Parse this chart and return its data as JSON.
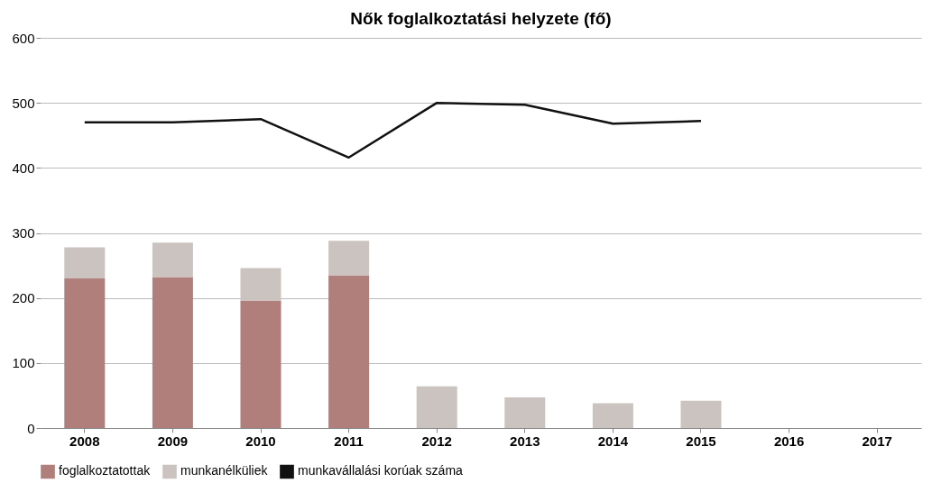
{
  "chart_data": {
    "type": "bar",
    "title": "Nők foglalkoztatási helyzete (fő)",
    "categories": [
      "2008",
      "2009",
      "2010",
      "2011",
      "2012",
      "2013",
      "2014",
      "2015",
      "2016",
      "2017"
    ],
    "stacked": true,
    "series": [
      {
        "name": "foglalkoztatottak",
        "color": "#b07f7b",
        "values": [
          230,
          232,
          196,
          235,
          null,
          null,
          null,
          null,
          null,
          null
        ]
      },
      {
        "name": "munkanélküliek",
        "color": "#cbc3bf",
        "values": [
          48,
          53,
          50,
          53,
          64,
          47,
          38,
          42,
          null,
          null
        ]
      },
      {
        "name": "munkavállalási korúak száma",
        "type": "line",
        "color": "#111111",
        "values": [
          470,
          470,
          475,
          416,
          500,
          497,
          468,
          472,
          null,
          null
        ]
      }
    ],
    "ylim": [
      0,
      600
    ],
    "yticks": [
      0,
      100,
      200,
      300,
      400,
      500,
      600
    ],
    "grid": "y",
    "legend": "bottom"
  }
}
